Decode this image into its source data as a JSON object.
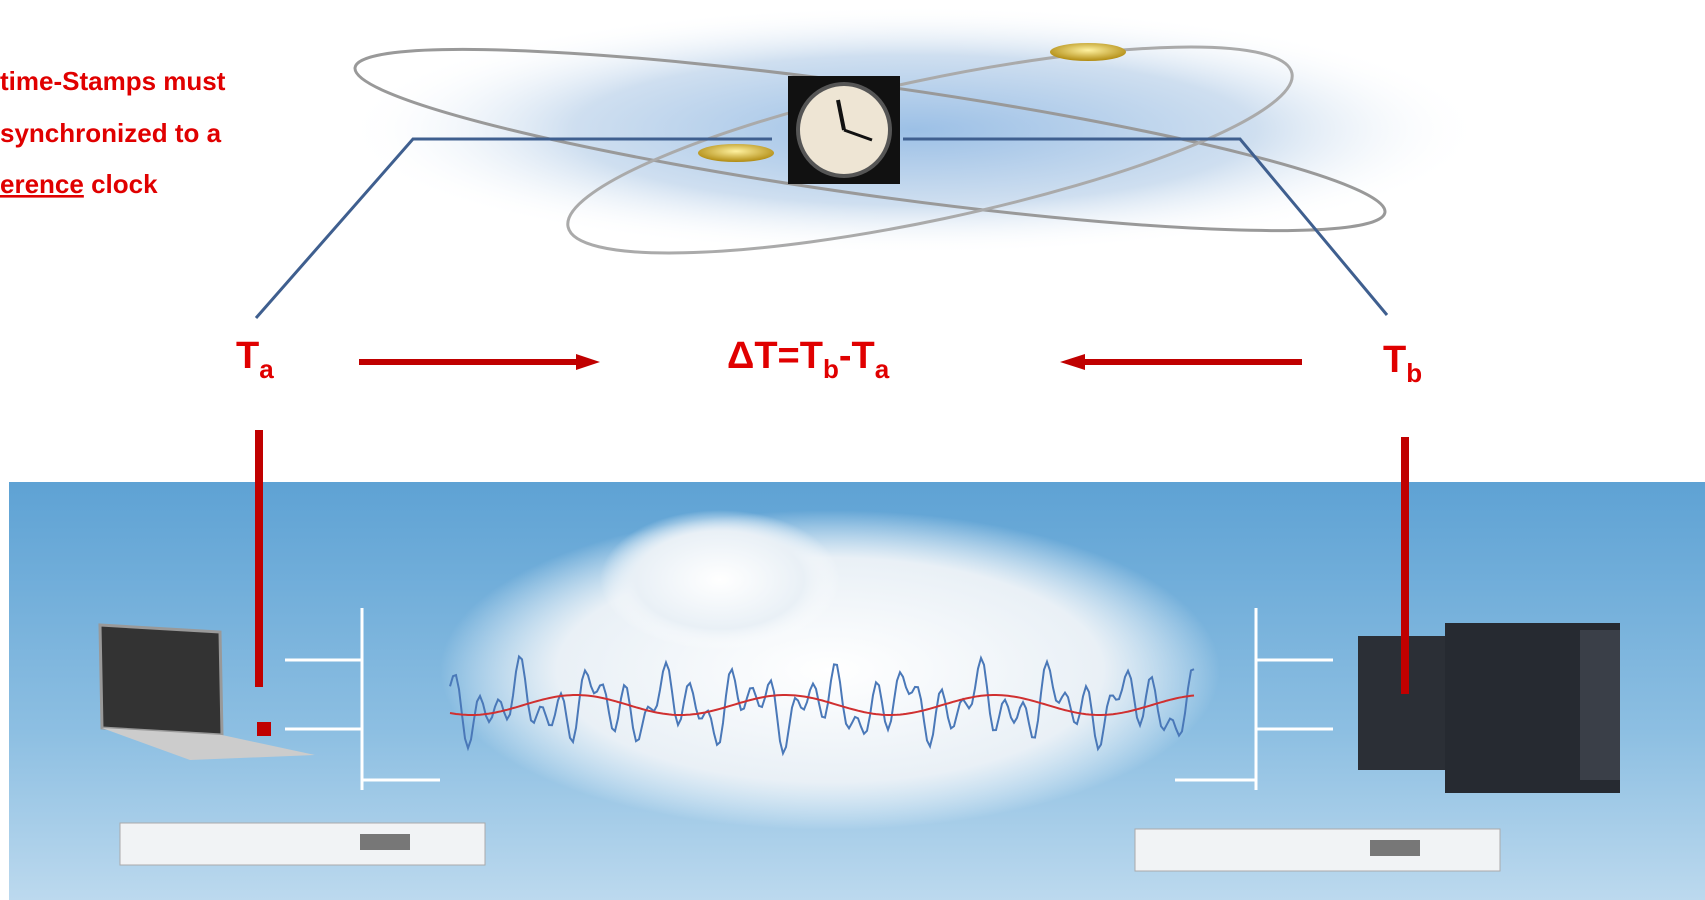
{
  "note": {
    "lines": [
      "time-Stamps must",
      "synchronized to a"
    ],
    "last_underlined": "erence",
    "last_rest": " clock"
  },
  "ta": {
    "base": "T",
    "sub": "a"
  },
  "tb": {
    "base": "T",
    "sub": "b"
  },
  "delta": {
    "lead": "ΔT=T",
    "sub1": "b",
    "mid": "-T",
    "sub2": "a"
  }
}
